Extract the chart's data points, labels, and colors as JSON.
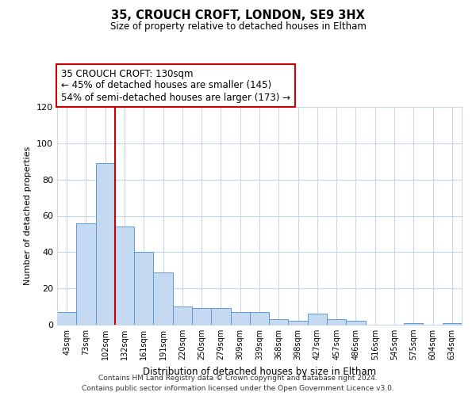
{
  "title": "35, CROUCH CROFT, LONDON, SE9 3HX",
  "subtitle": "Size of property relative to detached houses in Eltham",
  "xlabel": "Distribution of detached houses by size in Eltham",
  "ylabel": "Number of detached properties",
  "bar_labels": [
    "43sqm",
    "73sqm",
    "102sqm",
    "132sqm",
    "161sqm",
    "191sqm",
    "220sqm",
    "250sqm",
    "279sqm",
    "309sqm",
    "339sqm",
    "368sqm",
    "398sqm",
    "427sqm",
    "457sqm",
    "486sqm",
    "516sqm",
    "545sqm",
    "575sqm",
    "604sqm",
    "634sqm"
  ],
  "bar_values": [
    7,
    56,
    89,
    54,
    40,
    29,
    10,
    9,
    9,
    7,
    7,
    3,
    2,
    6,
    3,
    2,
    0,
    0,
    1,
    0,
    1
  ],
  "bar_color": "#c5d9f0",
  "bar_edge_color": "#5b9bd5",
  "vline_x_index": 2.5,
  "vline_color": "#cc0000",
  "annotation_lines": [
    "35 CROUCH CROFT: 130sqm",
    "← 45% of detached houses are smaller (145)",
    "54% of semi-detached houses are larger (173) →"
  ],
  "annotation_box_color": "#cc0000",
  "ylim": [
    0,
    120
  ],
  "yticks": [
    0,
    20,
    40,
    60,
    80,
    100,
    120
  ],
  "footer_lines": [
    "Contains HM Land Registry data © Crown copyright and database right 2024.",
    "Contains public sector information licensed under the Open Government Licence v3.0."
  ],
  "background_color": "#ffffff",
  "grid_color": "#c8d8ea"
}
